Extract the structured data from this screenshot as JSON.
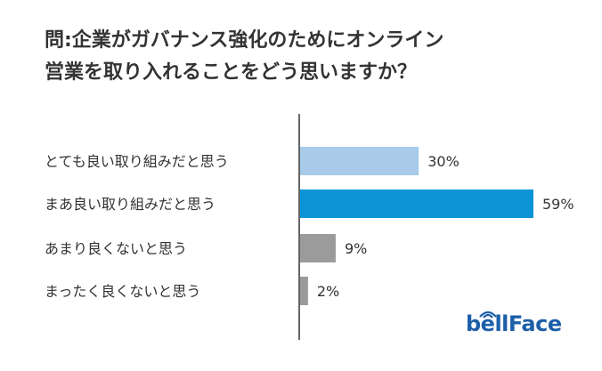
{
  "title": {
    "line1": "問:企業がガバナンス強化のためにオンライン",
    "line2": "営業を取り入れることをどう思いますか？"
  },
  "logo": {
    "text": "bellFace"
  },
  "colors": {
    "light_blue": "#a7cbe9",
    "blue": "#0b95d7",
    "gray": "#9b9b9b",
    "axis": "#333333"
  },
  "chart_data": {
    "type": "bar",
    "orientation": "horizontal",
    "categories": [
      "とても良い取り組みだと思う",
      "まあ良い取り組みだと思う",
      "あまり良くないと思う",
      "まったく良くないと思う"
    ],
    "values": [
      30,
      59,
      9,
      2
    ],
    "value_labels": [
      "30%",
      "59%",
      "9%",
      "2%"
    ],
    "bar_colors": [
      "#a7cbe9",
      "#0b95d7",
      "#9b9b9b",
      "#9b9b9b"
    ],
    "xlim": [
      0,
      100
    ],
    "unit": "%",
    "grid": false,
    "legend": "none"
  }
}
